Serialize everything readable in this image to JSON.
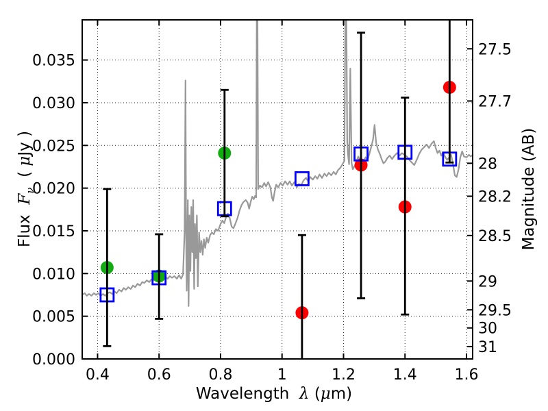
{
  "chart_data": {
    "type": "line+scatter",
    "title": "",
    "xlabel": "Wavelength λ (μm)",
    "ylabel_left": "Flux Fν ( μJy )",
    "ylabel_right": "Magnitude (AB)",
    "xlim": [
      0.35,
      1.62
    ],
    "ylim": [
      0,
      0.0397
    ],
    "grid": "dotted",
    "legend": "none",
    "x_ticks": [
      {
        "v": 0.4,
        "label": "0.4"
      },
      {
        "v": 0.6,
        "label": "0.6"
      },
      {
        "v": 0.8,
        "label": "0.8"
      },
      {
        "v": 1.0,
        "label": "1"
      },
      {
        "v": 1.2,
        "label": "1.2"
      },
      {
        "v": 1.4,
        "label": "1.4"
      },
      {
        "v": 1.6,
        "label": "1.6"
      }
    ],
    "y_ticks": [
      {
        "v": 0.0,
        "label": "0.000"
      },
      {
        "v": 0.005,
        "label": "0.005"
      },
      {
        "v": 0.01,
        "label": "0.010"
      },
      {
        "v": 0.015,
        "label": "0.015"
      },
      {
        "v": 0.02,
        "label": "0.020"
      },
      {
        "v": 0.025,
        "label": "0.025"
      },
      {
        "v": 0.03,
        "label": "0.030"
      },
      {
        "v": 0.035,
        "label": "0.035"
      }
    ],
    "mag_ticks": [
      {
        "flux": 0.03631,
        "label": "27.5"
      },
      {
        "flux": 0.0302,
        "label": "27.7"
      },
      {
        "flux": 0.02291,
        "label": "28"
      },
      {
        "flux": 0.01905,
        "label": "28.2"
      },
      {
        "flux": 0.01445,
        "label": "28.5"
      },
      {
        "flux": 0.00912,
        "label": "29"
      },
      {
        "flux": 0.00575,
        "label": "29.5"
      },
      {
        "flux": 0.00363,
        "label": "30"
      },
      {
        "flux": 0.00145,
        "label": "31"
      }
    ],
    "series": [
      {
        "name": "model-spectrum",
        "type": "line",
        "color": "#999999",
        "linewidth": 2.2,
        "points": [
          [
            0.35,
            0.0075
          ],
          [
            0.358,
            0.0077
          ],
          [
            0.365,
            0.0074
          ],
          [
            0.372,
            0.0076
          ],
          [
            0.38,
            0.0074
          ],
          [
            0.388,
            0.0077
          ],
          [
            0.395,
            0.0075
          ],
          [
            0.402,
            0.0077
          ],
          [
            0.41,
            0.0074
          ],
          [
            0.418,
            0.0076
          ],
          [
            0.425,
            0.0074
          ],
          [
            0.432,
            0.0077
          ],
          [
            0.44,
            0.0078
          ],
          [
            0.448,
            0.0076
          ],
          [
            0.455,
            0.0079
          ],
          [
            0.462,
            0.0077
          ],
          [
            0.47,
            0.0081
          ],
          [
            0.478,
            0.0079
          ],
          [
            0.485,
            0.0083
          ],
          [
            0.492,
            0.0081
          ],
          [
            0.5,
            0.0084
          ],
          [
            0.508,
            0.0082
          ],
          [
            0.515,
            0.0086
          ],
          [
            0.522,
            0.0084
          ],
          [
            0.53,
            0.0088
          ],
          [
            0.538,
            0.0086
          ],
          [
            0.545,
            0.009
          ],
          [
            0.552,
            0.0089
          ],
          [
            0.56,
            0.0092
          ],
          [
            0.568,
            0.009
          ],
          [
            0.575,
            0.0093
          ],
          [
            0.582,
            0.0092
          ],
          [
            0.59,
            0.0095
          ],
          [
            0.598,
            0.0093
          ],
          [
            0.605,
            0.0096
          ],
          [
            0.612,
            0.0094
          ],
          [
            0.62,
            0.0096
          ],
          [
            0.628,
            0.0094
          ],
          [
            0.635,
            0.0097
          ],
          [
            0.642,
            0.0095
          ],
          [
            0.65,
            0.0097
          ],
          [
            0.658,
            0.0094
          ],
          [
            0.665,
            0.0098
          ],
          [
            0.672,
            0.0094
          ],
          [
            0.678,
            0.0099
          ],
          [
            0.683,
            0.015
          ],
          [
            0.686,
            0.0326
          ],
          [
            0.688,
            0.014
          ],
          [
            0.69,
            0.008
          ],
          [
            0.6935,
            0.0186
          ],
          [
            0.696,
            0.0062
          ],
          [
            0.699,
            0.0168
          ],
          [
            0.702,
            0.0103
          ],
          [
            0.705,
            0.0178
          ],
          [
            0.708,
            0.0125
          ],
          [
            0.711,
            0.0186
          ],
          [
            0.714,
            0.0082
          ],
          [
            0.717,
            0.0158
          ],
          [
            0.72,
            0.0118
          ],
          [
            0.723,
            0.0168
          ],
          [
            0.726,
            0.0085
          ],
          [
            0.73,
            0.0148
          ],
          [
            0.734,
            0.0125
          ],
          [
            0.738,
            0.0138
          ],
          [
            0.742,
            0.0122
          ],
          [
            0.746,
            0.014
          ],
          [
            0.75,
            0.013
          ],
          [
            0.755,
            0.0142
          ],
          [
            0.76,
            0.0136
          ],
          [
            0.766,
            0.0145
          ],
          [
            0.772,
            0.0148
          ],
          [
            0.778,
            0.0146
          ],
          [
            0.785,
            0.0152
          ],
          [
            0.792,
            0.015
          ],
          [
            0.8,
            0.0158
          ],
          [
            0.806,
            0.0162
          ],
          [
            0.812,
            0.0159
          ],
          [
            0.818,
            0.0166
          ],
          [
            0.824,
            0.017
          ],
          [
            0.83,
            0.0165
          ],
          [
            0.836,
            0.0155
          ],
          [
            0.842,
            0.0153
          ],
          [
            0.848,
            0.0158
          ],
          [
            0.855,
            0.0165
          ],
          [
            0.862,
            0.0174
          ],
          [
            0.868,
            0.018
          ],
          [
            0.875,
            0.0184
          ],
          [
            0.882,
            0.0186
          ],
          [
            0.888,
            0.0183
          ],
          [
            0.893,
            0.0176
          ],
          [
            0.898,
            0.0184
          ],
          [
            0.903,
            0.019
          ],
          [
            0.908,
            0.0187
          ],
          [
            0.9125,
            0.0191
          ],
          [
            0.916,
            0.0189
          ],
          [
            0.918,
            0.042
          ],
          [
            0.92,
            0.042
          ],
          [
            0.9225,
            0.0199
          ],
          [
            0.928,
            0.0203
          ],
          [
            0.935,
            0.0201
          ],
          [
            0.942,
            0.0206
          ],
          [
            0.948,
            0.0202
          ],
          [
            0.955,
            0.0207
          ],
          [
            0.962,
            0.0201
          ],
          [
            0.967,
            0.0189
          ],
          [
            0.971,
            0.0185
          ],
          [
            0.976,
            0.0196
          ],
          [
            0.981,
            0.0204
          ],
          [
            0.988,
            0.0201
          ],
          [
            0.995,
            0.0206
          ],
          [
            1.002,
            0.0203
          ],
          [
            1.01,
            0.0208
          ],
          [
            1.018,
            0.0204
          ],
          [
            1.025,
            0.0208
          ],
          [
            1.032,
            0.0203
          ],
          [
            1.04,
            0.0207
          ],
          [
            1.048,
            0.0201
          ],
          [
            1.055,
            0.0205
          ],
          [
            1.062,
            0.0203
          ],
          [
            1.07,
            0.0209
          ],
          [
            1.078,
            0.0212
          ],
          [
            1.085,
            0.0208
          ],
          [
            1.092,
            0.0213
          ],
          [
            1.1,
            0.021
          ],
          [
            1.108,
            0.0214
          ],
          [
            1.115,
            0.0211
          ],
          [
            1.122,
            0.0216
          ],
          [
            1.13,
            0.0212
          ],
          [
            1.138,
            0.0217
          ],
          [
            1.145,
            0.0214
          ],
          [
            1.152,
            0.0218
          ],
          [
            1.16,
            0.0215
          ],
          [
            1.168,
            0.0219
          ],
          [
            1.175,
            0.0216
          ],
          [
            1.182,
            0.0221
          ],
          [
            1.19,
            0.0224
          ],
          [
            1.197,
            0.0228
          ],
          [
            1.203,
            0.0232
          ],
          [
            1.206,
            0.042
          ],
          [
            1.209,
            0.042
          ],
          [
            1.212,
            0.0255
          ],
          [
            1.215,
            0.0238
          ],
          [
            1.218,
            0.0228
          ],
          [
            1.222,
            0.034
          ],
          [
            1.226,
            0.023
          ],
          [
            1.23,
            0.0222
          ],
          [
            1.236,
            0.0226
          ],
          [
            1.242,
            0.0231
          ],
          [
            1.248,
            0.0237
          ],
          [
            1.254,
            0.0233
          ],
          [
            1.26,
            0.0228
          ],
          [
            1.266,
            0.0232
          ],
          [
            1.272,
            0.0236
          ],
          [
            1.278,
            0.0233
          ],
          [
            1.284,
            0.024
          ],
          [
            1.29,
            0.0248
          ],
          [
            1.296,
            0.0257
          ],
          [
            1.301,
            0.0274
          ],
          [
            1.306,
            0.0253
          ],
          [
            1.312,
            0.0245
          ],
          [
            1.318,
            0.024
          ],
          [
            1.324,
            0.0234
          ],
          [
            1.33,
            0.0229
          ],
          [
            1.336,
            0.0231
          ],
          [
            1.342,
            0.0235
          ],
          [
            1.35,
            0.0238
          ],
          [
            1.358,
            0.0234
          ],
          [
            1.366,
            0.0238
          ],
          [
            1.374,
            0.0241
          ],
          [
            1.382,
            0.0238
          ],
          [
            1.39,
            0.0241
          ],
          [
            1.398,
            0.0239
          ],
          [
            1.406,
            0.0237
          ],
          [
            1.414,
            0.0233
          ],
          [
            1.422,
            0.023
          ],
          [
            1.43,
            0.0227
          ],
          [
            1.438,
            0.0233
          ],
          [
            1.446,
            0.024
          ],
          [
            1.454,
            0.0245
          ],
          [
            1.462,
            0.0248
          ],
          [
            1.47,
            0.0251
          ],
          [
            1.478,
            0.0247
          ],
          [
            1.486,
            0.0252
          ],
          [
            1.494,
            0.0255
          ],
          [
            1.5,
            0.0247
          ],
          [
            1.506,
            0.0241
          ],
          [
            1.512,
            0.0244
          ],
          [
            1.518,
            0.0238
          ],
          [
            1.524,
            0.0242
          ],
          [
            1.53,
            0.0237
          ],
          [
            1.537,
            0.0233
          ],
          [
            1.544,
            0.0236
          ],
          [
            1.55,
            0.0239
          ],
          [
            1.556,
            0.0228
          ],
          [
            1.562,
            0.0215
          ],
          [
            1.568,
            0.0213
          ],
          [
            1.574,
            0.0222
          ],
          [
            1.58,
            0.0236
          ],
          [
            1.586,
            0.0243
          ],
          [
            1.592,
            0.0237
          ],
          [
            1.6,
            0.0236
          ],
          [
            1.608,
            0.0239
          ],
          [
            1.614,
            0.0237
          ],
          [
            1.62,
            0.0239
          ]
        ]
      },
      {
        "name": "photometry-green",
        "type": "scatter",
        "marker": "circle",
        "color": "#12ac12",
        "points": [
          {
            "x": 0.431,
            "y": 0.0107,
            "lo": 0.0015,
            "hi": 0.0199
          },
          {
            "x": 0.6,
            "y": 0.0097,
            "lo": 0.0047,
            "hi": 0.0146
          },
          {
            "x": 0.813,
            "y": 0.0241,
            "lo": 0.0167,
            "hi": 0.0315
          }
        ]
      },
      {
        "name": "photometry-red",
        "type": "scatter",
        "marker": "circle",
        "color": "#ff0000",
        "points": [
          {
            "x": 1.065,
            "y": 0.0054,
            "lo": -0.0036,
            "hi": 0.0145
          },
          {
            "x": 1.257,
            "y": 0.0227,
            "lo": 0.0071,
            "hi": 0.0382
          },
          {
            "x": 1.4,
            "y": 0.0178,
            "lo": 0.0052,
            "hi": 0.0306
          },
          {
            "x": 1.545,
            "y": 0.0318,
            "lo": 0.023,
            "hi": 0.0406
          }
        ]
      },
      {
        "name": "model-photometry-blue",
        "type": "scatter",
        "marker": "open-square",
        "color": "#0000ff",
        "points": [
          {
            "x": 0.431,
            "y": 0.0075
          },
          {
            "x": 0.6,
            "y": 0.0095
          },
          {
            "x": 0.813,
            "y": 0.0176
          },
          {
            "x": 1.065,
            "y": 0.0211
          },
          {
            "x": 1.257,
            "y": 0.024
          },
          {
            "x": 1.4,
            "y": 0.0242
          },
          {
            "x": 1.545,
            "y": 0.0234
          }
        ]
      }
    ]
  },
  "labels": {
    "x_word": "Wavelength",
    "x_lambda": "λ",
    "x_unit_open": "(",
    "x_mu": "μ",
    "x_unit_close": "m)",
    "flux_word": "Flux",
    "flux_F": "F",
    "flux_nu": "ν",
    "flux_unit_open": "(",
    "flux_mu": "μ",
    "flux_unit_close": "Jy )",
    "mag_label": "Magnitude (AB)"
  },
  "style": {
    "errorbar_color": "#000000",
    "grid_color": "#222222",
    "frame_color": "#000000",
    "background": "#ffffff"
  }
}
